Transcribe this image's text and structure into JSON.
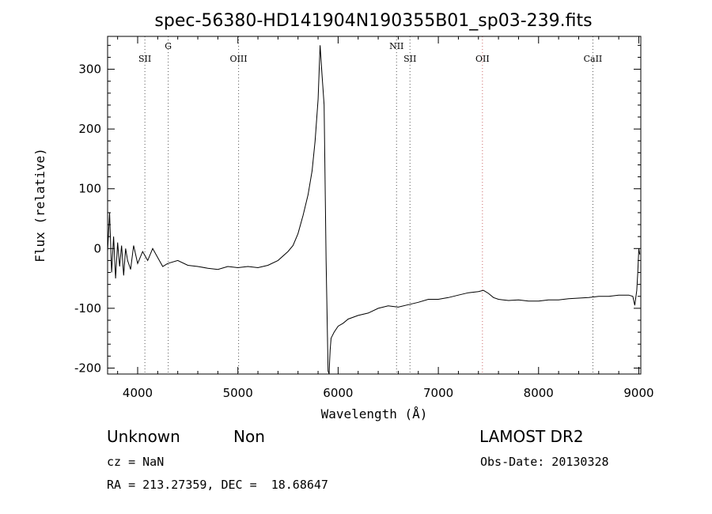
{
  "chart_data": {
    "type": "line",
    "title": "spec-56380-HD141904N190355B01_sp03-239.fits",
    "xlabel": "Wavelength (Å)",
    "ylabel": "Flux (relative)",
    "xlim": [
      3700,
      9020
    ],
    "ylim": [
      -210,
      355
    ],
    "x_ticks": [
      4000,
      5000,
      6000,
      7000,
      8000,
      9000
    ],
    "y_ticks": [
      -200,
      -100,
      0,
      100,
      200,
      300
    ],
    "grid": false,
    "series": [
      {
        "x": [
          3700,
          3720,
          3740,
          3760,
          3780,
          3800,
          3820,
          3840,
          3860,
          3880,
          3900,
          3930,
          3960,
          4000,
          4050,
          4100,
          4150,
          4200,
          4250,
          4300,
          4400,
          4500,
          4600,
          4700,
          4800,
          4900,
          5000,
          5100,
          5200,
          5300,
          5400,
          5500,
          5550,
          5600,
          5650,
          5700,
          5740,
          5770,
          5800,
          5820,
          5840,
          5860,
          5880,
          5900,
          5910,
          5915,
          5920,
          5930,
          5960,
          6000,
          6050,
          6100,
          6200,
          6300,
          6400,
          6500,
          6600,
          6700,
          6800,
          6900,
          7000,
          7100,
          7200,
          7300,
          7400,
          7450,
          7500,
          7550,
          7600,
          7700,
          7800,
          7900,
          8000,
          8100,
          8200,
          8300,
          8400,
          8500,
          8600,
          8700,
          8800,
          8900,
          8940,
          8960,
          8980,
          8990,
          9000,
          9010
        ],
        "y": [
          -5,
          60,
          -40,
          20,
          -50,
          10,
          -30,
          5,
          -45,
          0,
          -20,
          -35,
          5,
          -25,
          -5,
          -20,
          0,
          -15,
          -30,
          -25,
          -20,
          -28,
          -30,
          -33,
          -35,
          -30,
          -32,
          -30,
          -32,
          -28,
          -20,
          -5,
          5,
          25,
          55,
          90,
          130,
          180,
          250,
          340,
          290,
          240,
          -20,
          -205,
          -210,
          -190,
          -170,
          -150,
          -140,
          -130,
          -125,
          -118,
          -112,
          -108,
          -100,
          -96,
          -98,
          -94,
          -90,
          -85,
          -85,
          -82,
          -78,
          -74,
          -72,
          -70,
          -75,
          -82,
          -85,
          -87,
          -86,
          -88,
          -88,
          -86,
          -86,
          -84,
          -83,
          -82,
          -80,
          -80,
          -78,
          -78,
          -80,
          -95,
          -70,
          -40,
          0,
          -10
        ]
      }
    ],
    "line_markers": [
      {
        "label": "SII",
        "x": 4072,
        "color": "#555555"
      },
      {
        "label": "G",
        "x": 4305,
        "color": "#555555"
      },
      {
        "label": "OIII",
        "x": 5007,
        "color": "#555555"
      },
      {
        "label": "NII",
        "x": 6583,
        "color": "#555555"
      },
      {
        "label": "SII",
        "x": 6717,
        "color": "#555555"
      },
      {
        "label": "OII",
        "x": 7440,
        "color": "#cc6666"
      },
      {
        "label": "CaII",
        "x": 8542,
        "color": "#555555"
      }
    ]
  },
  "footer": {
    "class_label": "Unknown",
    "subclass_label": "Non",
    "cz": "cz = NaN",
    "coords": "RA = 213.27359, DEC =  18.68647",
    "survey": "LAMOST DR2",
    "obs_date": "Obs-Date: 20130328"
  }
}
